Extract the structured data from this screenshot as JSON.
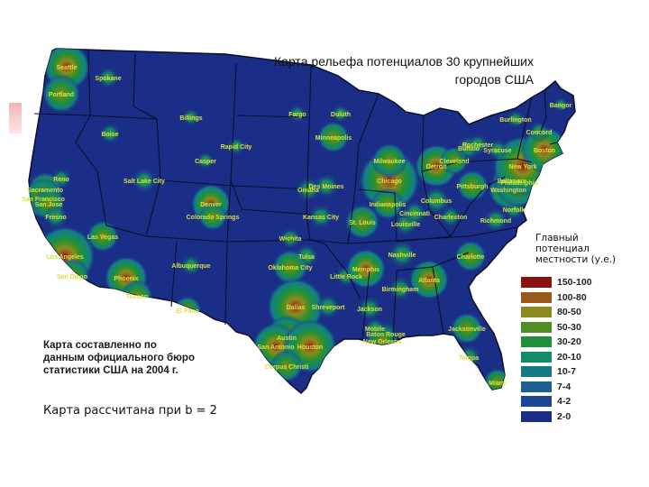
{
  "title": {
    "line1": "Карта рельефа потенциалов 30 крупнейших",
    "line2": "городов США"
  },
  "source_note": {
    "line1": "Карта составленно по",
    "line2": "данным официального бюро",
    "line3": "статистики США на 2004 г."
  },
  "calc_note": "Карта рассчитана при b = 2",
  "legend": {
    "title_line1": "Главный",
    "title_line2": "потенциал",
    "title_line3": "местности (у.е.)",
    "items": [
      {
        "label": "150-100",
        "color": "#8b1010"
      },
      {
        "label": "100-80",
        "color": "#9a5a1a"
      },
      {
        "label": "80-50",
        "color": "#8a8a20"
      },
      {
        "label": "50-30",
        "color": "#4f8d25"
      },
      {
        "label": "30-20",
        "color": "#1f8f3a"
      },
      {
        "label": "20-10",
        "color": "#138a6a"
      },
      {
        "label": "10-7",
        "color": "#157a86"
      },
      {
        "label": "7-4",
        "color": "#1b5f93"
      },
      {
        "label": "4-2",
        "color": "#1d4596"
      },
      {
        "label": "2-0",
        "color": "#1a2e88"
      }
    ]
  },
  "map_colors": {
    "base": "#1a2e88",
    "border": "#0a0f2a",
    "label": "#d8e23a"
  },
  "cities": [
    {
      "name": "Seattle"
    },
    {
      "name": "Spokane"
    },
    {
      "name": "Portland"
    },
    {
      "name": "Boise"
    },
    {
      "name": "Billings"
    },
    {
      "name": "Rapid City"
    },
    {
      "name": "Casper"
    },
    {
      "name": "Reno"
    },
    {
      "name": "Sacramento"
    },
    {
      "name": "San Francisco"
    },
    {
      "name": "San Jose"
    },
    {
      "name": "Fresno"
    },
    {
      "name": "Salt Lake City"
    },
    {
      "name": "Las Vegas"
    },
    {
      "name": "Los Angeles"
    },
    {
      "name": "San Diego"
    },
    {
      "name": "Phoenix"
    },
    {
      "name": "Tucson"
    },
    {
      "name": "Albuquerque"
    },
    {
      "name": "El Paso"
    },
    {
      "name": "Denver"
    },
    {
      "name": "Colorado Springs"
    },
    {
      "name": "Fargo"
    },
    {
      "name": "Duluth"
    },
    {
      "name": "Minneapolis"
    },
    {
      "name": "Des Moines"
    },
    {
      "name": "Omaha"
    },
    {
      "name": "Kansas City"
    },
    {
      "name": "Wichita"
    },
    {
      "name": "Tulsa"
    },
    {
      "name": "Oklahoma City"
    },
    {
      "name": "Dallas"
    },
    {
      "name": "Shreveport"
    },
    {
      "name": "Austin"
    },
    {
      "name": "San Antonio"
    },
    {
      "name": "Houston"
    },
    {
      "name": "Corpus Christi"
    },
    {
      "name": "Little Rock"
    },
    {
      "name": "Memphis"
    },
    {
      "name": "Jackson"
    },
    {
      "name": "Baton Rouge"
    },
    {
      "name": "New Orleans"
    },
    {
      "name": "Mobile"
    },
    {
      "name": "Birmingham"
    },
    {
      "name": "Atlanta"
    },
    {
      "name": "Nashville"
    },
    {
      "name": "St. Louis"
    },
    {
      "name": "Louisville"
    },
    {
      "name": "Chicago"
    },
    {
      "name": "Milwaukee"
    },
    {
      "name": "Detroit"
    },
    {
      "name": "Indianapolis"
    },
    {
      "name": "Cincinnati"
    },
    {
      "name": "Columbus"
    },
    {
      "name": "Pittsburgh"
    },
    {
      "name": "Cleveland"
    },
    {
      "name": "Charleston"
    },
    {
      "name": "Richmond"
    },
    {
      "name": "Norfolk"
    },
    {
      "name": "Washington"
    },
    {
      "name": "Baltimore"
    },
    {
      "name": "Philadelphia"
    },
    {
      "name": "New York"
    },
    {
      "name": "Boston"
    },
    {
      "name": "Concord"
    },
    {
      "name": "Burlington"
    },
    {
      "name": "Bangor"
    },
    {
      "name": "Buffalo"
    },
    {
      "name": "Rochester"
    },
    {
      "name": "Syracuse"
    },
    {
      "name": "Charlotte"
    },
    {
      "name": "Jacksonville"
    },
    {
      "name": "Tampa"
    },
    {
      "name": "Miami"
    }
  ]
}
